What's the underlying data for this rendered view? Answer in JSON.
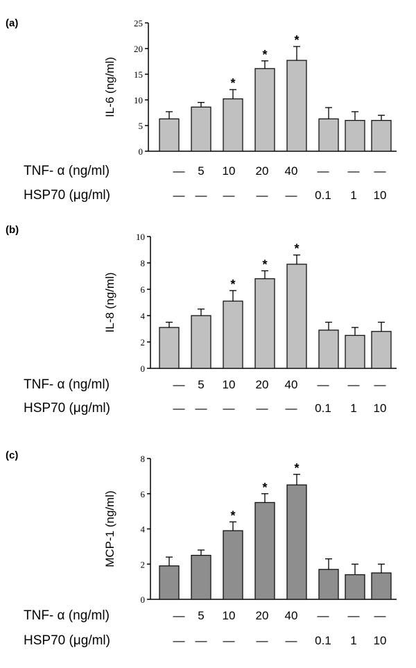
{
  "chart_data": [
    {
      "type": "bar",
      "panel": "(a)",
      "ylabel": "IL-6 (ng/ml)",
      "ylim": [
        0,
        25
      ],
      "yticks": [
        "0",
        "5",
        "10",
        "15",
        "20",
        "25"
      ],
      "bar_color": "#c0c0c0",
      "values": [
        6.3,
        8.6,
        10.2,
        16.1,
        17.7,
        6.3,
        6.0,
        6.0
      ],
      "errors": [
        1.4,
        0.9,
        1.8,
        1.5,
        2.7,
        2.2,
        1.7,
        1.0
      ],
      "significant": [
        false,
        false,
        true,
        true,
        true,
        false,
        false,
        false
      ],
      "star_label": "*",
      "tnf_label": "TNF- α  (ng/ml)",
      "tnf_values": [
        "—",
        "5",
        "10",
        "20",
        "40",
        "—",
        "—",
        "—"
      ],
      "hsp_label": "HSP70 (μg/ml)",
      "hsp_values": [
        "—",
        "—",
        "—",
        "—",
        "—",
        "0.1",
        "1",
        "10"
      ]
    },
    {
      "type": "bar",
      "panel": "(b)",
      "ylabel": "IL-8 (ng/ml)",
      "ylim": [
        0,
        10
      ],
      "yticks": [
        "0",
        "2",
        "4",
        "6",
        "8",
        "10"
      ],
      "bar_color": "#c0c0c0",
      "values": [
        3.1,
        4.0,
        5.1,
        6.8,
        7.9,
        2.9,
        2.5,
        2.8
      ],
      "errors": [
        0.4,
        0.5,
        0.8,
        0.6,
        0.7,
        0.6,
        0.6,
        0.7
      ],
      "significant": [
        false,
        false,
        true,
        true,
        true,
        false,
        false,
        false
      ],
      "star_label": "*",
      "tnf_label": "TNF- α  (ng/ml)",
      "tnf_values": [
        "—",
        "5",
        "10",
        "20",
        "40",
        "—",
        "—",
        "—"
      ],
      "hsp_label": "HSP70 (μg/ml)",
      "hsp_values": [
        "—",
        "—",
        "—",
        "—",
        "—",
        "0.1",
        "1",
        "10"
      ]
    },
    {
      "type": "bar",
      "panel": "(c)",
      "ylabel": "MCP-1 (ng/ml)",
      "ylim": [
        0,
        8
      ],
      "yticks": [
        "0",
        "2",
        "4",
        "6",
        "8"
      ],
      "bar_color": "#8e8e8e",
      "values": [
        1.9,
        2.5,
        3.9,
        5.5,
        6.5,
        1.7,
        1.4,
        1.5
      ],
      "errors": [
        0.5,
        0.3,
        0.5,
        0.5,
        0.6,
        0.6,
        0.6,
        0.5
      ],
      "significant": [
        false,
        false,
        true,
        true,
        true,
        false,
        false,
        false
      ],
      "star_label": "*",
      "tnf_label": "TNF- α  (ng/ml)",
      "tnf_values": [
        "—",
        "5",
        "10",
        "20",
        "40",
        "—",
        "—",
        "—"
      ],
      "hsp_label": "HSP70 (μg/ml)",
      "hsp_values": [
        "—",
        "—",
        "—",
        "—",
        "—",
        "0.1",
        "1",
        "10"
      ]
    }
  ]
}
